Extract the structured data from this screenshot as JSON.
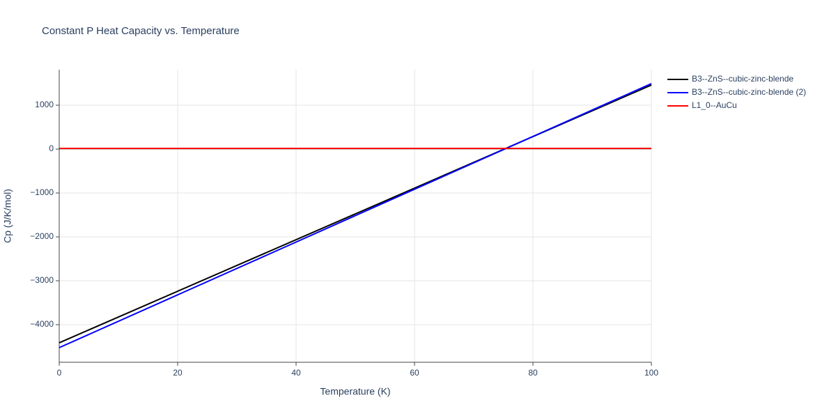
{
  "chart_data": {
    "type": "line",
    "title": "Constant P Heat Capacity vs. Temperature",
    "x_label": "Temperature (K)",
    "y_label": "Cp (J/K/mol)",
    "xlim": [
      0,
      100
    ],
    "xticks": [
      0,
      20,
      40,
      60,
      80,
      100
    ],
    "ylim": [
      -4857,
      1810
    ],
    "yticks": [
      {
        "value": -4000,
        "label": "−4000"
      },
      {
        "value": -3000,
        "label": "−3000"
      },
      {
        "value": -2000,
        "label": "−2000"
      },
      {
        "value": -1000,
        "label": "−1000"
      },
      0,
      1000
    ],
    "grid": true,
    "legend": "right",
    "series": [
      {
        "name": "B3--ZnS--cubic-zinc-blende",
        "color": "#000000",
        "x": [
          0,
          100
        ],
        "values": [
          -4413,
          1460
        ]
      },
      {
        "name": "B3--ZnS--cubic-zinc-blende (2)",
        "color": "#0000ff",
        "x": [
          0,
          100
        ],
        "values": [
          -4524,
          1492
        ]
      },
      {
        "name": "L1_0--AuCu",
        "color": "#ff0000",
        "x": [
          0,
          100
        ],
        "values": [
          16,
          16
        ]
      }
    ]
  }
}
